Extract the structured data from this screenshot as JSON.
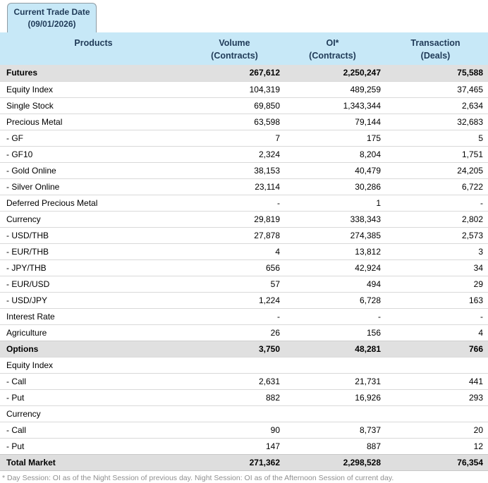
{
  "tab": {
    "line1": "Current Trade Date",
    "line2": "(09/01/2026)"
  },
  "table": {
    "columns": [
      {
        "label": "Products",
        "sub": ""
      },
      {
        "label": "Volume",
        "sub": "(Contracts)"
      },
      {
        "label": "OI*",
        "sub": "(Contracts)"
      },
      {
        "label": "Transaction",
        "sub": "(Deals)"
      }
    ],
    "rows": [
      {
        "product": "Futures",
        "volume": "267,612",
        "oi": "2,250,247",
        "transaction": "75,588",
        "style": "section"
      },
      {
        "product": "Equity Index",
        "volume": "104,319",
        "oi": "489,259",
        "transaction": "37,465",
        "style": "normal"
      },
      {
        "product": "Single Stock",
        "volume": "69,850",
        "oi": "1,343,344",
        "transaction": "2,634",
        "style": "normal"
      },
      {
        "product": "Precious Metal",
        "volume": "63,598",
        "oi": "79,144",
        "transaction": "32,683",
        "style": "normal"
      },
      {
        "product": "- GF",
        "volume": "7",
        "oi": "175",
        "transaction": "5",
        "style": "normal"
      },
      {
        "product": "- GF10",
        "volume": "2,324",
        "oi": "8,204",
        "transaction": "1,751",
        "style": "normal"
      },
      {
        "product": "- Gold Online",
        "volume": "38,153",
        "oi": "40,479",
        "transaction": "24,205",
        "style": "normal"
      },
      {
        "product": "- Silver Online",
        "volume": "23,114",
        "oi": "30,286",
        "transaction": "6,722",
        "style": "normal"
      },
      {
        "product": "Deferred Precious Metal",
        "volume": "-",
        "oi": "1",
        "transaction": "-",
        "style": "normal"
      },
      {
        "product": "Currency",
        "volume": "29,819",
        "oi": "338,343",
        "transaction": "2,802",
        "style": "normal"
      },
      {
        "product": "- USD/THB",
        "volume": "27,878",
        "oi": "274,385",
        "transaction": "2,573",
        "style": "normal"
      },
      {
        "product": "- EUR/THB",
        "volume": "4",
        "oi": "13,812",
        "transaction": "3",
        "style": "normal"
      },
      {
        "product": "- JPY/THB",
        "volume": "656",
        "oi": "42,924",
        "transaction": "34",
        "style": "normal"
      },
      {
        "product": "- EUR/USD",
        "volume": "57",
        "oi": "494",
        "transaction": "29",
        "style": "normal"
      },
      {
        "product": "- USD/JPY",
        "volume": "1,224",
        "oi": "6,728",
        "transaction": "163",
        "style": "normal"
      },
      {
        "product": "Interest Rate",
        "volume": "-",
        "oi": "-",
        "transaction": "-",
        "style": "normal"
      },
      {
        "product": "Agriculture",
        "volume": "26",
        "oi": "156",
        "transaction": "4",
        "style": "normal"
      },
      {
        "product": "Options",
        "volume": "3,750",
        "oi": "48,281",
        "transaction": "766",
        "style": "section"
      },
      {
        "product": "Equity Index",
        "volume": "",
        "oi": "",
        "transaction": "",
        "style": "normal"
      },
      {
        "product": "- Call",
        "volume": "2,631",
        "oi": "21,731",
        "transaction": "441",
        "style": "normal"
      },
      {
        "product": "- Put",
        "volume": "882",
        "oi": "16,926",
        "transaction": "293",
        "style": "normal"
      },
      {
        "product": "Currency",
        "volume": "",
        "oi": "",
        "transaction": "",
        "style": "normal"
      },
      {
        "product": "- Call",
        "volume": "90",
        "oi": "8,737",
        "transaction": "20",
        "style": "normal"
      },
      {
        "product": "- Put",
        "volume": "147",
        "oi": "887",
        "transaction": "12",
        "style": "normal"
      },
      {
        "product": "Total Market",
        "volume": "271,362",
        "oi": "2,298,528",
        "transaction": "76,354",
        "style": "total"
      }
    ]
  },
  "footnote": "* Day Session: OI as of the Night Session of previous day. Night Session: OI as of the Afternoon Session of current day.",
  "colors": {
    "header_background": "#c7e8f7",
    "header_text": "#1f3a57",
    "section_row_background": "#e0e0e0",
    "total_row_background": "#dedede",
    "row_separator": "#d9d9d9",
    "tab_border": "#8e9ba3",
    "footnote_text": "#8f8f8f"
  }
}
